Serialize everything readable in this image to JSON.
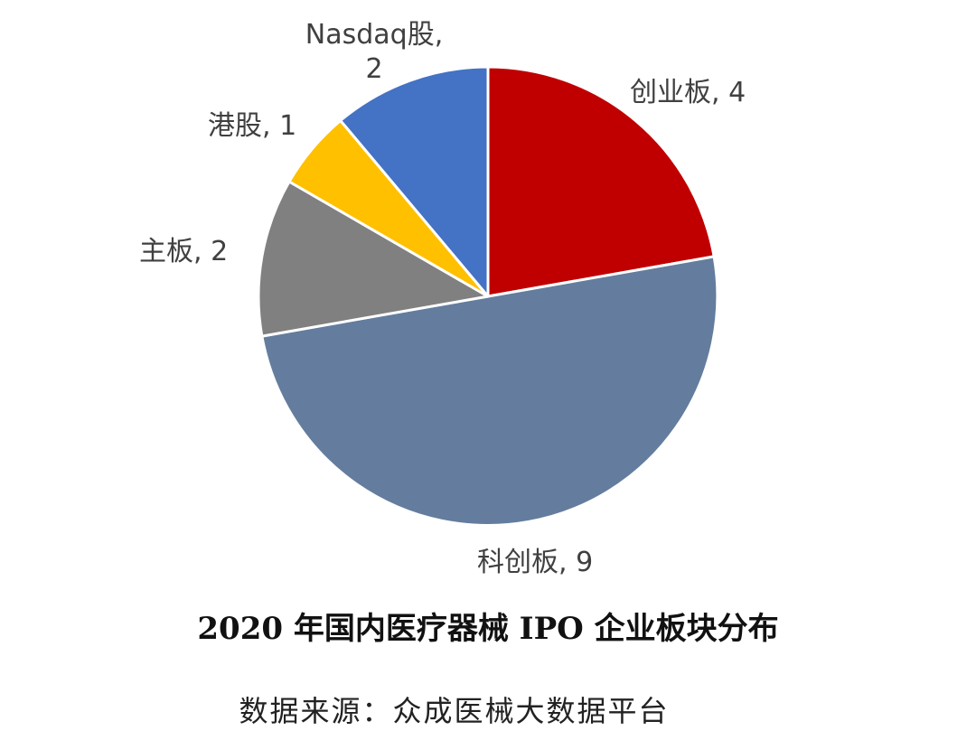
{
  "chart_data": {
    "type": "pie",
    "title": "2020 年国内医疗器械 IPO 企业板块分布",
    "slices": [
      {
        "label": "创业板",
        "value": 4,
        "color": "#c00000"
      },
      {
        "label": "科创板",
        "value": 9,
        "color": "#647d9e"
      },
      {
        "label": "主板",
        "value": 2,
        "color": "#808080"
      },
      {
        "label": "港股",
        "value": 1,
        "color": "#ffc000"
      },
      {
        "label": "Nasdaq股",
        "value": 2,
        "color": "#4472c4"
      }
    ],
    "data_labels": [
      {
        "lines": [
          "创业板, 4"
        ]
      },
      {
        "lines": [
          "科创板, 9"
        ]
      },
      {
        "lines": [
          "主板, 2"
        ]
      },
      {
        "lines": [
          "港股, 1"
        ]
      },
      {
        "lines": [
          "Nasdaq股,",
          "2"
        ]
      }
    ]
  },
  "source": "数据来源：众成医械大数据平台"
}
